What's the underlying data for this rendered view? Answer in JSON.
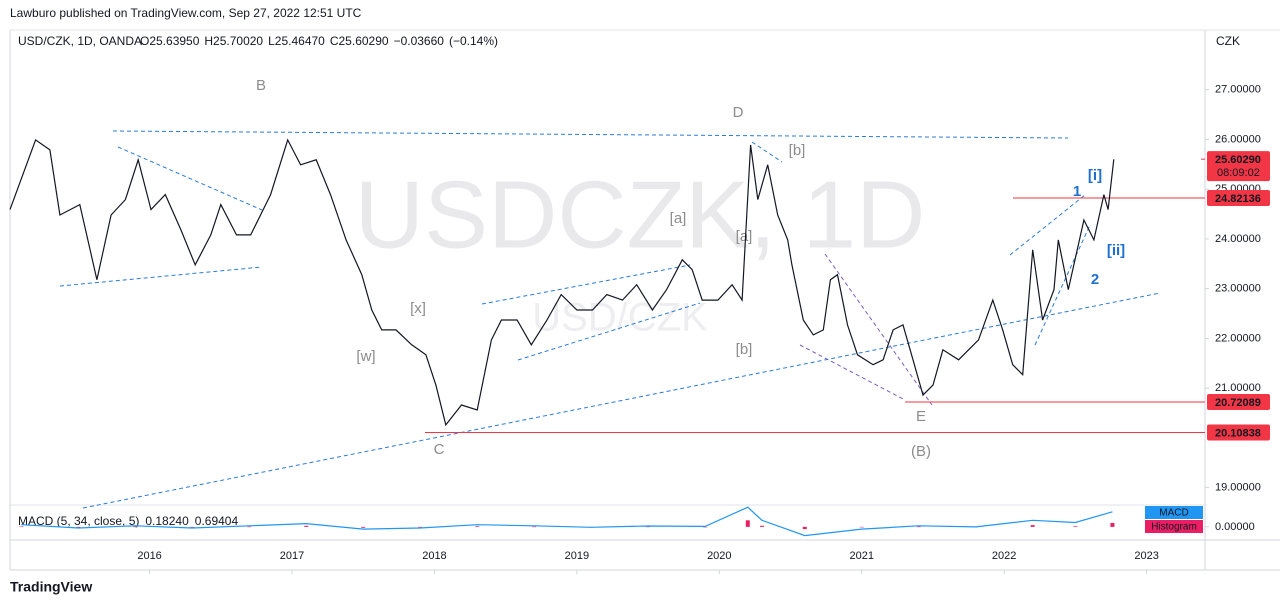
{
  "header": {
    "published": "Lawburo published on TradingView.com, Sep 27, 2022 12:51 UTC"
  },
  "footer": {
    "brand": "TradingView"
  },
  "waves": [
    "B",
    "D",
    "[b]",
    "[a]",
    "[a]",
    "[x]",
    "[w]",
    "C",
    "[b]",
    "E",
    "(B)",
    "[i]",
    "1",
    "[ii]",
    "2"
  ],
  "chart_data": [
    {
      "type": "line",
      "title": "USD/CZK, 1D, OANDA",
      "watermark": "USDCZK, 1D",
      "y_label": "CZK",
      "ohlc": [
        {
          "value": 25.6395,
          "label": "O25.63950"
        },
        {
          "value": 25.7002,
          "label": "H25.70020"
        },
        {
          "value": 25.4647,
          "label": "L25.46470"
        },
        {
          "value": 25.6029,
          "label": "C25.60290"
        },
        {
          "value": -0.0366,
          "label": "−0.03660"
        },
        {
          "value": -0.14,
          "label": "(−0.14%)"
        }
      ],
      "xlim": [
        2015.02,
        2023.41
      ],
      "xticks": [
        2016,
        2017,
        2018,
        2019,
        2020,
        2021,
        2022,
        2023
      ],
      "ylim": [
        18.65,
        28.2
      ],
      "yticks": [
        {
          "value": 19,
          "label": "19.00000"
        },
        {
          "value": 21,
          "label": "21.00000"
        },
        {
          "value": 22,
          "label": "22.00000"
        },
        {
          "value": 23,
          "label": "23.00000"
        },
        {
          "value": 24,
          "label": "24.00000"
        },
        {
          "value": 25,
          "label": "25.00000"
        },
        {
          "value": 26,
          "label": "26.00000"
        },
        {
          "value": 27,
          "label": "27.00000"
        }
      ],
      "grid": false,
      "series": [
        {
          "name": "USD/CZK",
          "color": "#131722",
          "x": [
            2015.02,
            2015.2,
            2015.3,
            2015.37,
            2015.51,
            2015.63,
            2015.73,
            2015.83,
            2015.92,
            2016.01,
            2016.11,
            2016.22,
            2016.32,
            2016.43,
            2016.5,
            2016.61,
            2016.71,
            2016.85,
            2016.97,
            2017.06,
            2017.17,
            2017.27,
            2017.38,
            2017.49,
            2017.56,
            2017.63,
            2017.73,
            2017.84,
            2017.94,
            2018.01,
            2018.08,
            2018.19,
            2018.3,
            2018.4,
            2018.47,
            2018.58,
            2018.68,
            2018.79,
            2018.89,
            2019.0,
            2019.11,
            2019.21,
            2019.32,
            2019.42,
            2019.53,
            2019.63,
            2019.74,
            2019.81,
            2019.88,
            2019.99,
            2020.09,
            2020.16,
            2020.22,
            2020.27,
            2020.34,
            2020.41,
            2020.48,
            2020.51,
            2020.59,
            2020.66,
            2020.73,
            2020.78,
            2020.83,
            2020.9,
            2020.97,
            2021.08,
            2021.15,
            2021.22,
            2021.29,
            2021.36,
            2021.43,
            2021.5,
            2021.57,
            2021.68,
            2021.75,
            2021.82,
            2021.92,
            2021.99,
            2022.06,
            2022.13,
            2022.2,
            2022.27,
            2022.35,
            2022.38,
            2022.45,
            2022.56,
            2022.63,
            2022.7,
            2022.73,
            2022.77
          ],
          "values": [
            24.59,
            25.99,
            25.79,
            24.48,
            24.69,
            23.18,
            24.48,
            24.79,
            25.59,
            24.59,
            24.89,
            24.18,
            23.48,
            24.08,
            24.69,
            24.08,
            24.08,
            24.89,
            25.99,
            25.49,
            25.59,
            24.89,
            23.98,
            23.28,
            22.57,
            22.17,
            22.17,
            21.87,
            21.67,
            21.06,
            20.26,
            20.66,
            20.56,
            21.97,
            22.37,
            22.37,
            21.87,
            22.37,
            22.88,
            22.57,
            22.57,
            22.88,
            22.77,
            23.08,
            22.57,
            22.98,
            23.58,
            23.38,
            22.77,
            22.77,
            23.08,
            22.77,
            25.89,
            24.79,
            25.49,
            24.48,
            23.98,
            23.48,
            22.37,
            22.07,
            22.17,
            23.18,
            23.28,
            22.27,
            21.67,
            21.47,
            21.57,
            22.17,
            22.27,
            21.57,
            20.86,
            21.06,
            21.77,
            21.57,
            21.77,
            21.97,
            22.77,
            22.17,
            21.47,
            21.27,
            23.78,
            22.37,
            22.98,
            23.98,
            22.98,
            24.38,
            23.98,
            24.89,
            24.59,
            25.6
          ]
        }
      ],
      "last_price": {
        "value": 25.6029,
        "label": "25.60290",
        "countdown": "08:09:02",
        "color": "#f23645"
      },
      "levels": [
        {
          "value": 24.82136,
          "label": "24.82136"
        },
        {
          "value": 20.72089,
          "label": "20.72089"
        },
        {
          "value": 20.10838,
          "label": "20.10838"
        }
      ],
      "level_color": "#f23645"
    },
    {
      "type": "line",
      "title": "MACD (5, 34, close, 5)",
      "legend_values": [
        {
          "value": 0.1824,
          "label": "0.18240"
        },
        {
          "value": 0.69404,
          "label": "0.69404"
        }
      ],
      "xlim": [
        2015.02,
        2023.41
      ],
      "ylim": [
        -0.6,
        1.0
      ],
      "yticks": [
        {
          "value": 0,
          "label": "0.00000"
        }
      ],
      "x": [
        2015.1,
        2015.5,
        2015.9,
        2016.3,
        2016.7,
        2017.1,
        2017.5,
        2017.9,
        2018.3,
        2018.7,
        2019.1,
        2019.5,
        2019.9,
        2020.2,
        2020.3,
        2020.6,
        2021.0,
        2021.4,
        2021.8,
        2022.2,
        2022.5,
        2022.76
      ],
      "series": [
        {
          "name": "MACD",
          "color": "#2196f3",
          "values": [
            0.1,
            -0.05,
            0.05,
            -0.05,
            0.05,
            0.15,
            -0.1,
            -0.05,
            0.1,
            0.05,
            -0.02,
            0.04,
            0.02,
            0.9,
            0.3,
            -0.4,
            -0.1,
            0.05,
            0.0,
            0.3,
            0.2,
            0.69
          ]
        },
        {
          "name": "Histogram",
          "color": "#e91e63",
          "values": [
            0.02,
            -0.03,
            0.02,
            -0.02,
            0.01,
            0.05,
            -0.04,
            -0.02,
            0.03,
            0.01,
            -0.01,
            0.01,
            0.0,
            0.3,
            0.05,
            -0.1,
            -0.02,
            0.01,
            0.0,
            0.08,
            0.03,
            0.18
          ]
        }
      ]
    }
  ]
}
